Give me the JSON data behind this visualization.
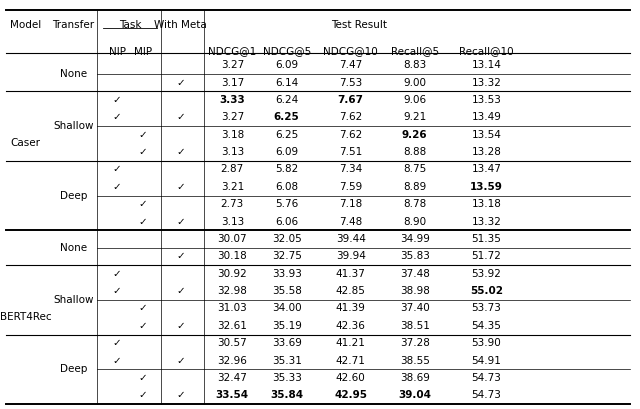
{
  "headers": {
    "metrics": [
      "NDCG@1",
      "NDCG@5",
      "NDCG@10",
      "Recall@5",
      "Recall@10"
    ]
  },
  "rows": [
    {
      "model": "Caser",
      "transfer": "None",
      "nip": false,
      "mip": false,
      "withmeta": false,
      "values": [
        "3.27",
        "6.09",
        "7.47",
        "8.83",
        "13.14"
      ],
      "bold": [
        false,
        false,
        false,
        false,
        false
      ]
    },
    {
      "model": "",
      "transfer": "",
      "nip": false,
      "mip": false,
      "withmeta": true,
      "values": [
        "3.17",
        "6.14",
        "7.53",
        "9.00",
        "13.32"
      ],
      "bold": [
        false,
        false,
        false,
        false,
        false
      ]
    },
    {
      "model": "",
      "transfer": "Shallow",
      "nip": true,
      "mip": false,
      "withmeta": false,
      "values": [
        "3.33",
        "6.24",
        "7.67",
        "9.06",
        "13.53"
      ],
      "bold": [
        true,
        false,
        true,
        false,
        false
      ]
    },
    {
      "model": "",
      "transfer": "",
      "nip": true,
      "mip": false,
      "withmeta": true,
      "values": [
        "3.27",
        "6.25",
        "7.62",
        "9.21",
        "13.49"
      ],
      "bold": [
        false,
        true,
        false,
        false,
        false
      ]
    },
    {
      "model": "",
      "transfer": "",
      "nip": false,
      "mip": true,
      "withmeta": false,
      "values": [
        "3.18",
        "6.25",
        "7.62",
        "9.26",
        "13.54"
      ],
      "bold": [
        false,
        false,
        false,
        true,
        false
      ]
    },
    {
      "model": "",
      "transfer": "",
      "nip": false,
      "mip": true,
      "withmeta": true,
      "values": [
        "3.13",
        "6.09",
        "7.51",
        "8.88",
        "13.28"
      ],
      "bold": [
        false,
        false,
        false,
        false,
        false
      ]
    },
    {
      "model": "",
      "transfer": "Deep",
      "nip": true,
      "mip": false,
      "withmeta": false,
      "values": [
        "2.87",
        "5.82",
        "7.34",
        "8.75",
        "13.47"
      ],
      "bold": [
        false,
        false,
        false,
        false,
        false
      ]
    },
    {
      "model": "",
      "transfer": "",
      "nip": true,
      "mip": false,
      "withmeta": true,
      "values": [
        "3.21",
        "6.08",
        "7.59",
        "8.89",
        "13.59"
      ],
      "bold": [
        false,
        false,
        false,
        false,
        true
      ]
    },
    {
      "model": "",
      "transfer": "",
      "nip": false,
      "mip": true,
      "withmeta": false,
      "values": [
        "2.73",
        "5.76",
        "7.18",
        "8.78",
        "13.18"
      ],
      "bold": [
        false,
        false,
        false,
        false,
        false
      ]
    },
    {
      "model": "",
      "transfer": "",
      "nip": false,
      "mip": true,
      "withmeta": true,
      "values": [
        "3.13",
        "6.06",
        "7.48",
        "8.90",
        "13.32"
      ],
      "bold": [
        false,
        false,
        false,
        false,
        false
      ]
    },
    {
      "model": "BERT4Rec",
      "transfer": "None",
      "nip": false,
      "mip": false,
      "withmeta": false,
      "values": [
        "30.07",
        "32.05",
        "39.44",
        "34.99",
        "51.35"
      ],
      "bold": [
        false,
        false,
        false,
        false,
        false
      ]
    },
    {
      "model": "",
      "transfer": "",
      "nip": false,
      "mip": false,
      "withmeta": true,
      "values": [
        "30.18",
        "32.75",
        "39.94",
        "35.83",
        "51.72"
      ],
      "bold": [
        false,
        false,
        false,
        false,
        false
      ]
    },
    {
      "model": "",
      "transfer": "Shallow",
      "nip": true,
      "mip": false,
      "withmeta": false,
      "values": [
        "30.92",
        "33.93",
        "41.37",
        "37.48",
        "53.92"
      ],
      "bold": [
        false,
        false,
        false,
        false,
        false
      ]
    },
    {
      "model": "",
      "transfer": "",
      "nip": true,
      "mip": false,
      "withmeta": true,
      "values": [
        "32.98",
        "35.58",
        "42.85",
        "38.98",
        "55.02"
      ],
      "bold": [
        false,
        false,
        false,
        false,
        true
      ]
    },
    {
      "model": "",
      "transfer": "",
      "nip": false,
      "mip": true,
      "withmeta": false,
      "values": [
        "31.03",
        "34.00",
        "41.39",
        "37.40",
        "53.73"
      ],
      "bold": [
        false,
        false,
        false,
        false,
        false
      ]
    },
    {
      "model": "",
      "transfer": "",
      "nip": false,
      "mip": true,
      "withmeta": true,
      "values": [
        "32.61",
        "35.19",
        "42.36",
        "38.51",
        "54.35"
      ],
      "bold": [
        false,
        false,
        false,
        false,
        false
      ]
    },
    {
      "model": "",
      "transfer": "Deep",
      "nip": true,
      "mip": false,
      "withmeta": false,
      "values": [
        "30.57",
        "33.69",
        "41.21",
        "37.28",
        "53.90"
      ],
      "bold": [
        false,
        false,
        false,
        false,
        false
      ]
    },
    {
      "model": "",
      "transfer": "",
      "nip": true,
      "mip": false,
      "withmeta": true,
      "values": [
        "32.96",
        "35.31",
        "42.71",
        "38.55",
        "54.91"
      ],
      "bold": [
        false,
        false,
        false,
        false,
        false
      ]
    },
    {
      "model": "",
      "transfer": "",
      "nip": false,
      "mip": true,
      "withmeta": false,
      "values": [
        "32.47",
        "35.33",
        "42.60",
        "38.69",
        "54.73"
      ],
      "bold": [
        false,
        false,
        false,
        false,
        false
      ]
    },
    {
      "model": "",
      "transfer": "",
      "nip": false,
      "mip": true,
      "withmeta": true,
      "values": [
        "33.54",
        "35.84",
        "42.95",
        "39.04",
        "54.73"
      ],
      "bold": [
        true,
        true,
        true,
        true,
        false
      ]
    }
  ],
  "col_x": {
    "model": 0.04,
    "transfer": 0.115,
    "nip": 0.183,
    "mip": 0.223,
    "withmeta": 0.282,
    "ndcg1": 0.363,
    "ndcg5": 0.448,
    "ndcg10": 0.548,
    "recall5": 0.648,
    "recall10": 0.76
  },
  "vlines": [
    0.152,
    0.252,
    0.318
  ],
  "background_color": "#ffffff",
  "font_size": 7.5,
  "header_font_size": 7.5
}
